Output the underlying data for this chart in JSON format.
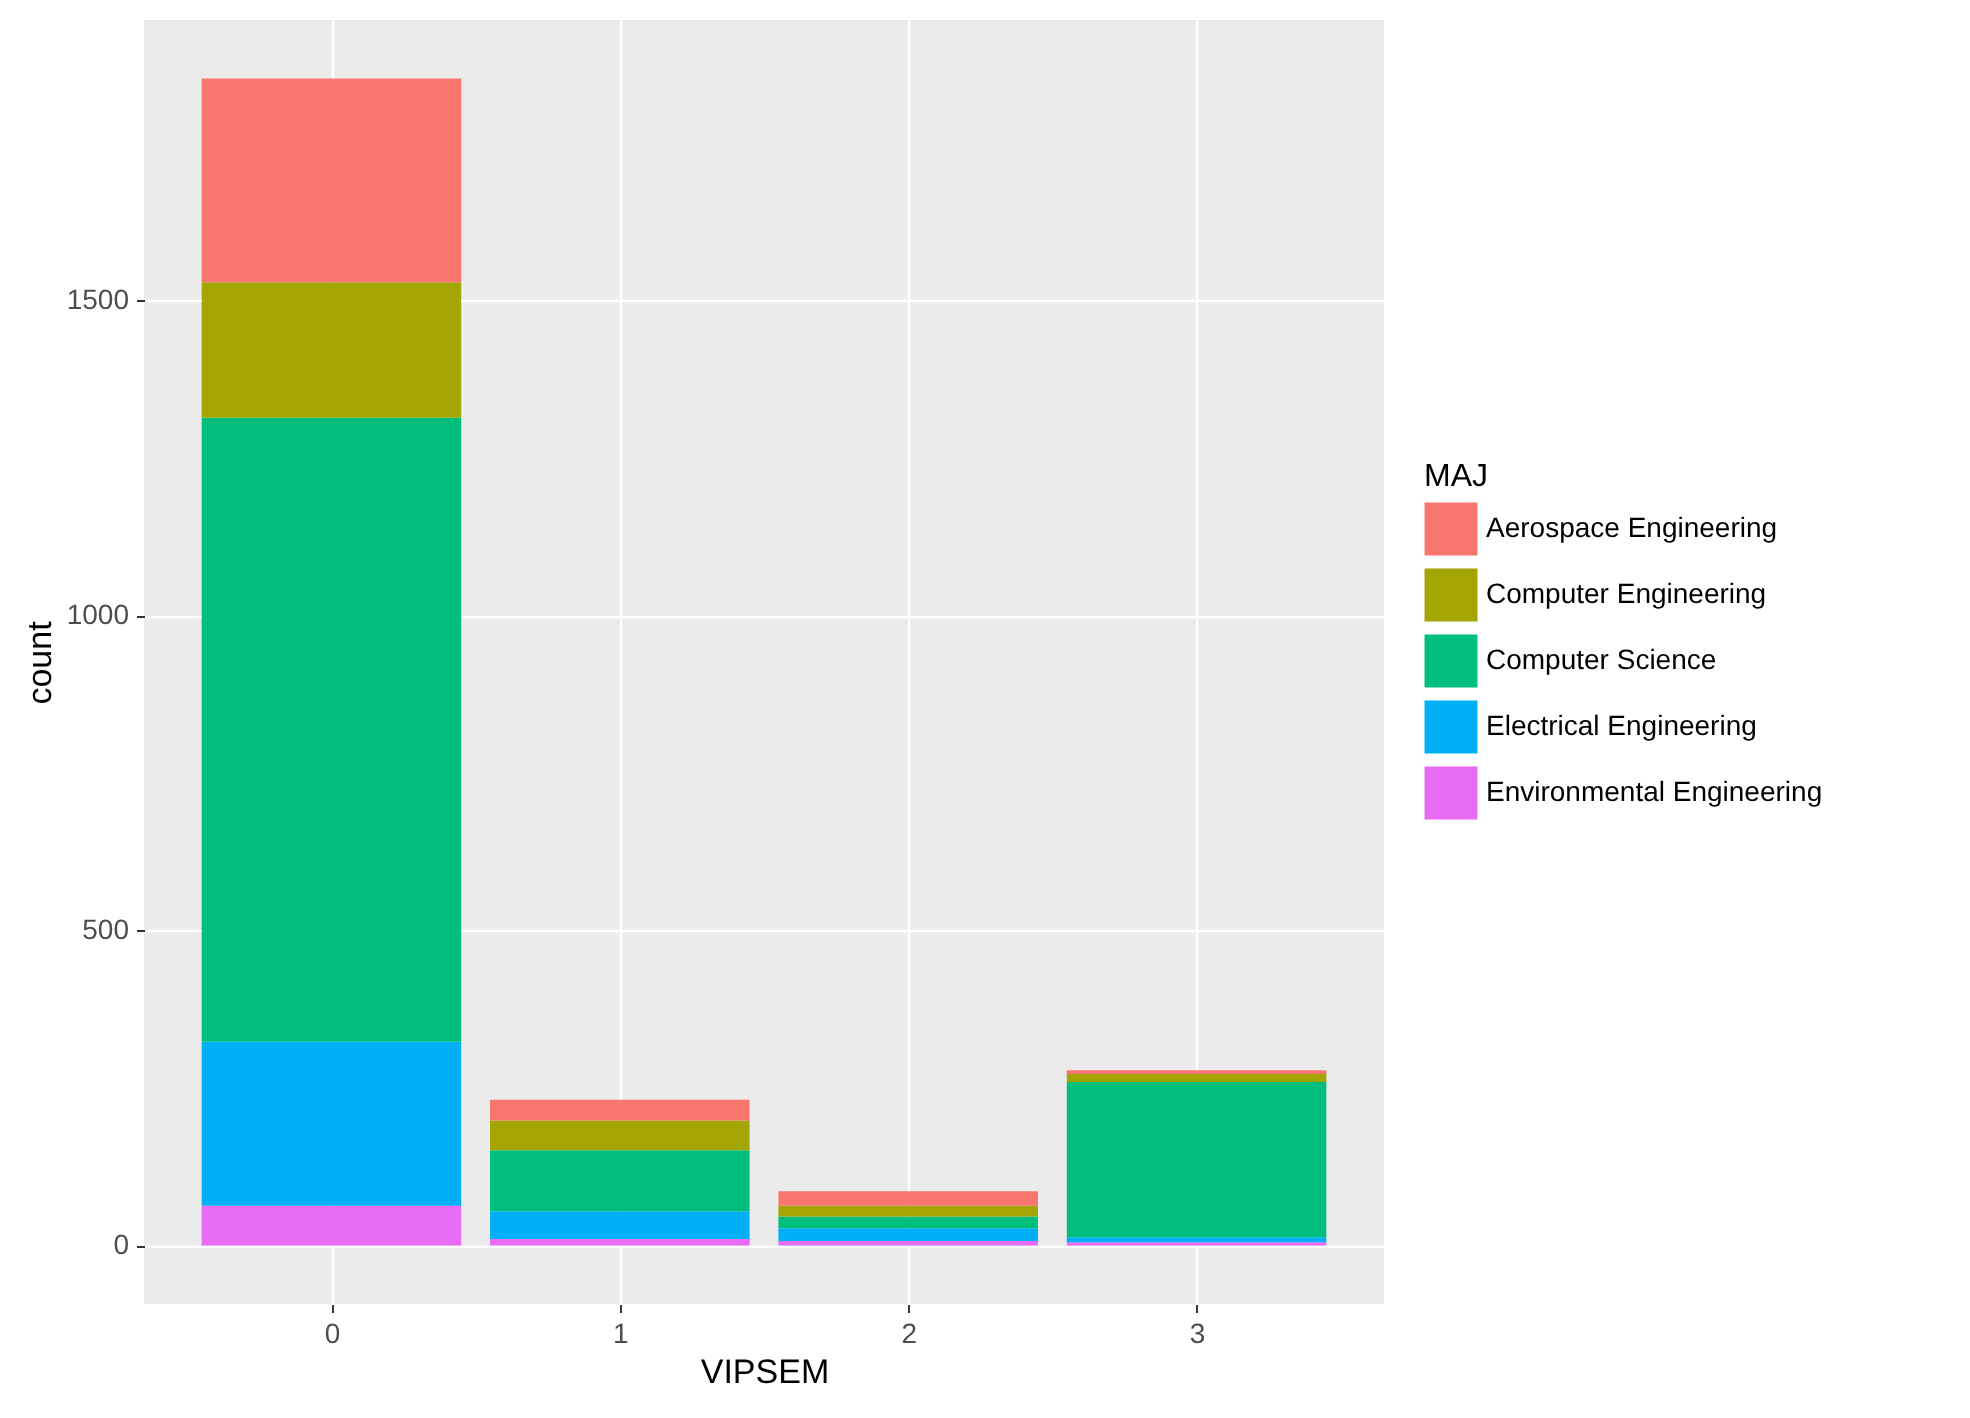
{
  "chart_data": {
    "type": "bar",
    "stacked": true,
    "xlabel": "VIPSEM",
    "ylabel": "count",
    "legend_title": "MAJ",
    "legend": "right",
    "grid": true,
    "x": [
      0,
      1,
      2,
      3
    ],
    "xlim": [
      -0.65,
      3.65
    ],
    "xticks": [
      0,
      1,
      2,
      3
    ],
    "ylim": [
      -93,
      1944
    ],
    "yticks": [
      0,
      500,
      1000,
      1500
    ],
    "series": [
      {
        "name": "Environmental Engineering",
        "color": "#e76bf3",
        "values": [
          63,
          10,
          7,
          5
        ]
      },
      {
        "name": "Electrical Engineering",
        "color": "#00b0f6",
        "values": [
          260,
          44,
          20,
          8
        ]
      },
      {
        "name": "Computer Science",
        "color": "#00bf7d",
        "values": [
          990,
          97,
          19,
          246
        ]
      },
      {
        "name": "Computer Engineering",
        "color": "#a3a500",
        "values": [
          215,
          47,
          17,
          13
        ]
      },
      {
        "name": "Aerospace Engineering",
        "color": "#f8766d",
        "values": [
          323,
          33,
          23,
          6
        ]
      }
    ]
  }
}
